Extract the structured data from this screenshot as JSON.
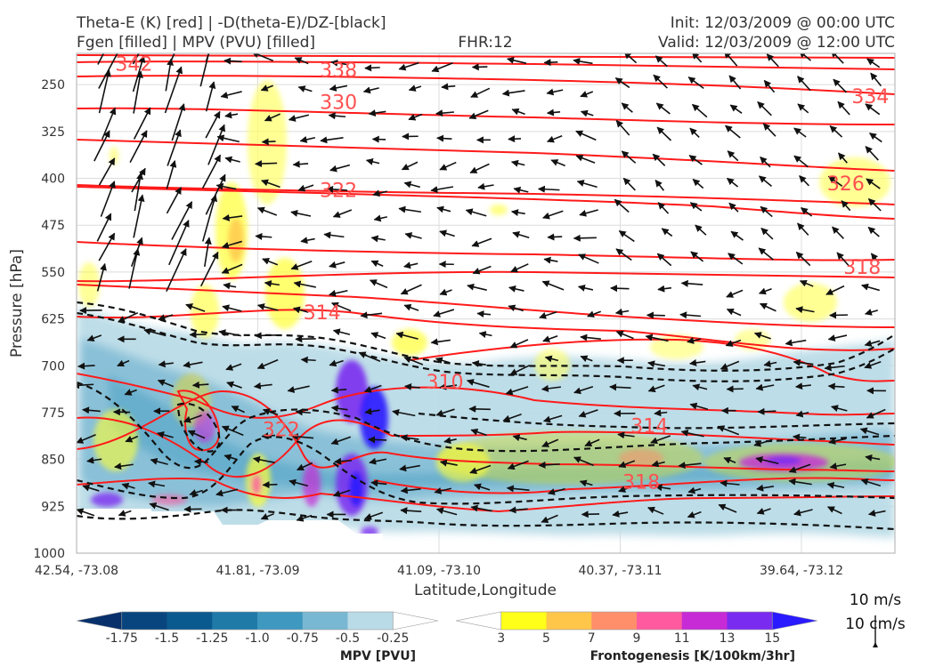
{
  "header": {
    "title_left_1": "Theta-E (K) [red] | -D(theta-E)/DZ-[black]",
    "title_left_2": "Fgen [filled] | MPV (PVU) [filled]",
    "fhr": "FHR:12",
    "init": "Init: 12/03/2009 @ 00:00 UTC",
    "valid": "Valid: 12/03/2009 @ 12:00 UTC"
  },
  "chart_data": {
    "type": "cross-section",
    "ylabel": "Pressure [hPa]",
    "xlabel": "Latitude,Longitude",
    "yaxis": {
      "reversed": true,
      "range": [
        1000,
        200
      ],
      "ticks": [
        250,
        325,
        400,
        475,
        550,
        625,
        700,
        775,
        850,
        925,
        1000
      ]
    },
    "xaxis": {
      "ticks": [
        "42.54, -73.08",
        "41.81, -73.09",
        "41.09, -73.10",
        "40.37, -73.11",
        "39.64, -73.12"
      ]
    },
    "grid": true,
    "theta_e": {
      "color": "#ff1a1a",
      "labeled_contours": [
        {
          "text": "342",
          "x": 0.07,
          "p": 218
        },
        {
          "text": "338",
          "x": 0.32,
          "p": 228
        },
        {
          "text": "334",
          "x": 0.97,
          "p": 270
        },
        {
          "text": "330",
          "x": 0.32,
          "p": 279
        },
        {
          "text": "326",
          "x": 0.94,
          "p": 409
        },
        {
          "text": "322",
          "x": 0.32,
          "p": 420
        },
        {
          "text": "318",
          "x": 0.96,
          "p": 543
        },
        {
          "text": "314",
          "x": 0.3,
          "p": 616
        },
        {
          "text": "310",
          "x": 0.45,
          "p": 727
        },
        {
          "text": "314",
          "x": 0.7,
          "p": 797
        },
        {
          "text": "318",
          "x": 0.69,
          "p": 887
        },
        {
          "text": "322",
          "x": 0.25,
          "p": 803
        }
      ]
    },
    "wind_scale": {
      "label_1": "10 m/s",
      "label_2": "10 cm/s"
    },
    "colorbars": [
      {
        "name": "MPV [PVU]",
        "tick_labels": [
          "-1.75",
          "-1.5",
          "-1.25",
          "-1.0",
          "-0.75",
          "-0.5",
          "-0.25"
        ],
        "colors": [
          "#08306b",
          "#08457e",
          "#0b5a8f",
          "#1f7aa8",
          "#3f98bf",
          "#79b8d3",
          "#b9dbe7",
          "#ffffff"
        ]
      },
      {
        "name": "Frontogenesis [K/100km/3hr]",
        "tick_labels": [
          "3",
          "5",
          "7",
          "9",
          "11",
          "13",
          "15"
        ],
        "colors": [
          "#ffffff",
          "#ffff1a",
          "#ffc64a",
          "#ff8e6a",
          "#ff5aa0",
          "#c62bd6",
          "#7a2bf0",
          "#2a1aff"
        ]
      }
    ]
  }
}
